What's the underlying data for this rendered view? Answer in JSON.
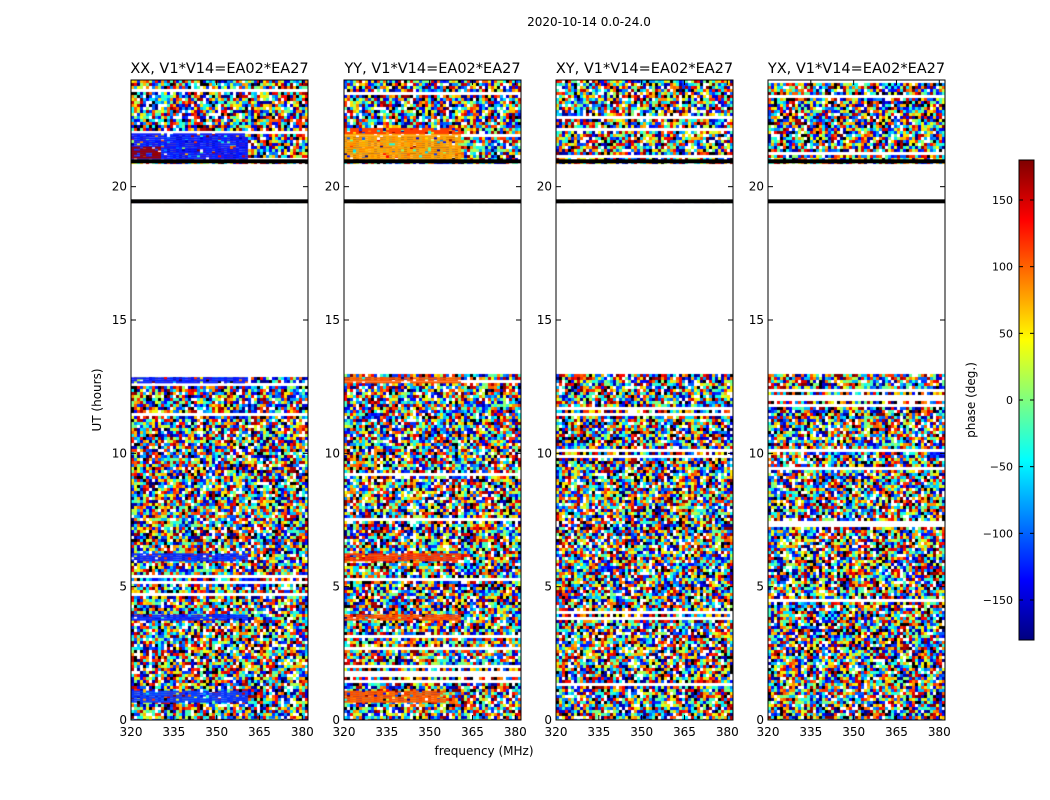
{
  "chart_data": {
    "type": "heatmap",
    "title": "2020-10-14 0.0-24.0",
    "xlabel": "frequency (MHz)",
    "ylabel": "UT (hours)",
    "xlim": [
      320,
      382
    ],
    "ylim": [
      0,
      24
    ],
    "xticks": [
      320,
      335,
      350,
      365,
      380
    ],
    "yticks": [
      0,
      5,
      10,
      15,
      20
    ],
    "colorbar": {
      "label": "phase (deg.)",
      "range": [
        -180,
        180
      ],
      "ticks": [
        150,
        100,
        50,
        0,
        -50,
        -100,
        -150
      ],
      "tick_labels": [
        "150",
        "100",
        "50",
        "0",
        "−50",
        "−100",
        "−150"
      ],
      "colormap": [
        "#00007f",
        "#0000ff",
        "#007fff",
        "#00ffff",
        "#7fff7f",
        "#ffff00",
        "#ff7f00",
        "#ff0000",
        "#7f0000"
      ]
    },
    "panels": [
      {
        "title": "XX, V1*V14=EA02*EA27",
        "bias": [
          {
            "y": [
              21.0,
              22.0
            ],
            "x": [
              320,
              360
            ],
            "color": "#0a1aff"
          },
          {
            "y": [
              21.1,
              21.5
            ],
            "x": [
              320,
              330
            ],
            "color": "#9a0000"
          },
          {
            "y": [
              12.65,
              12.85
            ],
            "x": [
              320,
              360
            ],
            "color": "#0a1aff"
          },
          {
            "y": [
              6.0,
              6.25
            ],
            "x": [
              320,
              360
            ],
            "color": "#0a2aff"
          },
          {
            "y": [
              3.75,
              3.95
            ],
            "x": [
              320,
              360
            ],
            "color": "#0a2aff"
          },
          {
            "y": [
              0.7,
              1.1
            ],
            "x": [
              320,
              360
            ],
            "color": "#0a3aff"
          }
        ]
      },
      {
        "title": "YY, V1*V14=EA02*EA27",
        "bias": [
          {
            "y": [
              21.0,
              22.0
            ],
            "x": [
              320,
              360
            ],
            "color": "#ffa000"
          },
          {
            "y": [
              22.0,
              22.2
            ],
            "x": [
              320,
              360
            ],
            "color": "#ff4000"
          },
          {
            "y": [
              12.65,
              12.85
            ],
            "x": [
              320,
              360
            ],
            "color": "#ff5a00"
          },
          {
            "y": [
              6.0,
              6.25
            ],
            "x": [
              320,
              360
            ],
            "color": "#ff3a00"
          },
          {
            "y": [
              3.75,
              3.95
            ],
            "x": [
              320,
              360
            ],
            "color": "#ff5000"
          },
          {
            "y": [
              0.7,
              1.1
            ],
            "x": [
              320,
              355
            ],
            "color": "#ff5a00"
          }
        ]
      },
      {
        "title": "XY, V1*V14=EA02*EA27",
        "bias": []
      },
      {
        "title": "YX, V1*V14=EA02*EA27",
        "bias": []
      }
    ],
    "blank_time_ranges": [
      [
        13.0,
        19.35
      ],
      [
        19.55,
        20.9
      ]
    ],
    "black_time_lines": [
      19.45,
      20.95
    ]
  }
}
